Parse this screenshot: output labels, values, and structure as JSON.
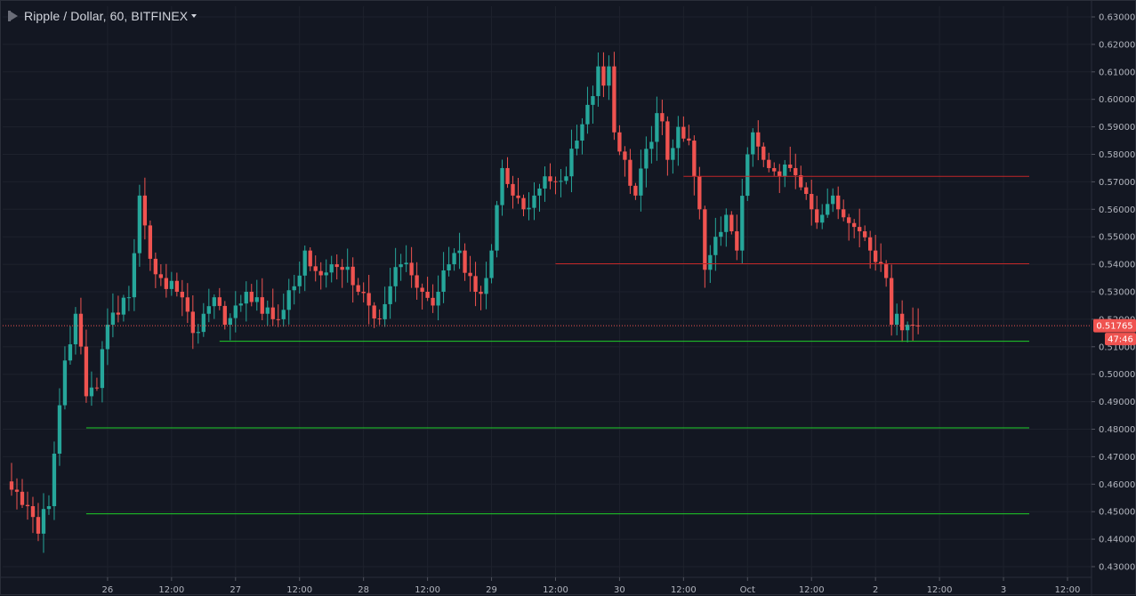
{
  "header": {
    "symbol_title": "Ripple / Dollar, 60, BITFINEX"
  },
  "colors": {
    "up": "#26a69a",
    "down": "#ef5350",
    "support": "#1fcf2a",
    "resistance": "#c22727",
    "price_badge": "#ef5350",
    "grid": "#1e222d",
    "text": "#b2b5be"
  },
  "chart_data": {
    "type": "candlestick",
    "title": "Ripple / Dollar, 60, BITFINEX",
    "interval_minutes": 60,
    "ylim": [
      0.43,
      0.63
    ],
    "y_ticks": [
      "0.63000",
      "0.62000",
      "0.61000",
      "0.60000",
      "0.59000",
      "0.58000",
      "0.57000",
      "0.56000",
      "0.55000",
      "0.54000",
      "0.53000",
      "0.52000",
      "0.51000",
      "0.50000",
      "0.49000",
      "0.48000",
      "0.47000",
      "0.46000",
      "0.45000",
      "0.44000",
      "0.43000"
    ],
    "x_ticks": [
      {
        "label": "26",
        "hours": 20
      },
      {
        "label": "12:00",
        "hours": 32
      },
      {
        "label": "27",
        "hours": 44
      },
      {
        "label": "12:00",
        "hours": 56
      },
      {
        "label": "28",
        "hours": 68
      },
      {
        "label": "12:00",
        "hours": 80
      },
      {
        "label": "29",
        "hours": 92
      },
      {
        "label": "12:00",
        "hours": 104
      },
      {
        "label": "30",
        "hours": 116
      },
      {
        "label": "12:00",
        "hours": 128
      },
      {
        "label": "Oct",
        "hours": 140
      },
      {
        "label": "12:00",
        "hours": 152
      },
      {
        "label": "2",
        "hours": 164
      },
      {
        "label": "12:00",
        "hours": 176
      },
      {
        "label": "3",
        "hours": 188
      },
      {
        "label": "12:00",
        "hours": 200
      }
    ],
    "current_price": "0.51765",
    "countdown": "47:46",
    "horizontal_lines": [
      {
        "price": 0.572,
        "kind": "resistance",
        "from_hours": 128
      },
      {
        "price": 0.5402,
        "kind": "resistance",
        "from_hours": 104
      },
      {
        "price": 0.512,
        "kind": "support",
        "from_hours": 41
      },
      {
        "price": 0.4805,
        "kind": "support",
        "from_hours": 16
      },
      {
        "price": 0.4492,
        "kind": "support",
        "from_hours": 16
      }
    ],
    "anchors": [
      [
        0,
        0.458
      ],
      [
        3,
        0.452
      ],
      [
        5,
        0.442
      ],
      [
        7,
        0.452
      ],
      [
        10,
        0.505
      ],
      [
        12,
        0.522
      ],
      [
        14,
        0.492
      ],
      [
        16,
        0.495
      ],
      [
        18,
        0.518
      ],
      [
        22,
        0.528
      ],
      [
        24,
        0.565
      ],
      [
        26,
        0.542
      ],
      [
        28,
        0.535
      ],
      [
        31,
        0.53
      ],
      [
        34,
        0.515
      ],
      [
        36,
        0.522
      ],
      [
        38,
        0.528
      ],
      [
        40,
        0.518
      ],
      [
        42,
        0.525
      ],
      [
        44,
        0.53
      ],
      [
        47,
        0.522
      ],
      [
        50,
        0.52
      ],
      [
        53,
        0.532
      ],
      [
        55,
        0.545
      ],
      [
        58,
        0.536
      ],
      [
        60,
        0.54
      ],
      [
        62,
        0.538
      ],
      [
        65,
        0.53
      ],
      [
        67,
        0.525
      ],
      [
        69,
        0.52
      ],
      [
        71,
        0.532
      ],
      [
        73,
        0.54
      ],
      [
        75,
        0.536
      ],
      [
        77,
        0.53
      ],
      [
        79,
        0.525
      ],
      [
        80,
        0.53
      ],
      [
        82,
        0.54
      ],
      [
        84,
        0.545
      ],
      [
        87,
        0.53
      ],
      [
        89,
        0.535
      ],
      [
        90,
        0.545
      ],
      [
        92,
        0.575
      ],
      [
        94,
        0.565
      ],
      [
        96,
        0.56
      ],
      [
        98,
        0.565
      ],
      [
        100,
        0.572
      ],
      [
        102,
        0.57
      ],
      [
        104,
        0.572
      ],
      [
        106,
        0.585
      ],
      [
        108,
        0.598
      ],
      [
        110,
        0.612
      ],
      [
        111,
        0.605
      ],
      [
        112,
        0.612
      ],
      [
        113,
        0.588
      ],
      [
        115,
        0.578
      ],
      [
        117,
        0.565
      ],
      [
        119,
        0.582
      ],
      [
        121,
        0.595
      ],
      [
        122,
        0.592
      ],
      [
        123,
        0.578
      ],
      [
        125,
        0.59
      ],
      [
        127,
        0.585
      ],
      [
        128,
        0.572
      ],
      [
        129,
        0.56
      ],
      [
        130,
        0.538
      ],
      [
        132,
        0.55
      ],
      [
        134,
        0.558
      ],
      [
        135,
        0.552
      ],
      [
        136,
        0.545
      ],
      [
        138,
        0.58
      ],
      [
        139,
        0.588
      ],
      [
        141,
        0.578
      ],
      [
        142,
        0.575
      ],
      [
        144,
        0.572
      ],
      [
        146,
        0.575
      ],
      [
        148,
        0.568
      ],
      [
        150,
        0.56
      ],
      [
        152,
        0.558
      ],
      [
        154,
        0.565
      ],
      [
        155,
        0.56
      ],
      [
        157,
        0.555
      ],
      [
        159,
        0.552
      ],
      [
        161,
        0.545
      ],
      [
        163,
        0.54
      ],
      [
        164,
        0.535
      ],
      [
        165,
        0.518
      ],
      [
        166,
        0.522
      ],
      [
        167,
        0.516
      ],
      [
        168,
        0.518
      ],
      [
        170,
        0.5177
      ]
    ]
  }
}
